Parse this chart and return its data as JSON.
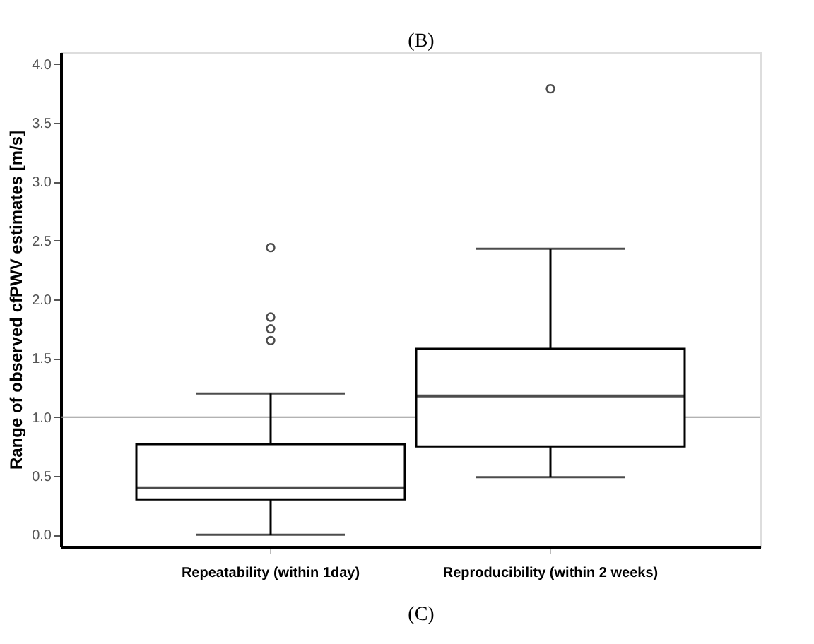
{
  "chart_data": {
    "type": "box",
    "ylabel": "Range of observed cfPWV estimates [m/s]",
    "categories": [
      "Repeatability (within 1day)",
      "Reproducibility (within 2 weeks)"
    ],
    "boxes": [
      {
        "low": 0.0,
        "q1": 0.3,
        "median": 0.4,
        "q3": 0.77,
        "high": 1.2,
        "outliers": [
          1.65,
          1.75,
          1.85,
          2.44
        ]
      },
      {
        "low": 0.49,
        "q1": 0.75,
        "median": 1.18,
        "q3": 1.58,
        "high": 2.43,
        "outliers": [
          3.79
        ]
      }
    ],
    "ylim": [
      -0.1,
      4.1
    ],
    "yticks": [
      {
        "value": 0,
        "label": "0.0"
      },
      0.5,
      {
        "value": 1,
        "label": "1.0"
      },
      1.5,
      {
        "value": 2,
        "label": "2.0"
      },
      2.5,
      {
        "value": 3,
        "label": "3.0"
      },
      3.5,
      {
        "value": 4,
        "label": "4.0"
      }
    ],
    "ref_lines": [
      {
        "axis": "y",
        "value": 1.0,
        "label": null,
        "color": "#999999"
      }
    ],
    "annotations": [
      "(B)",
      "(C)"
    ],
    "grid": false
  }
}
